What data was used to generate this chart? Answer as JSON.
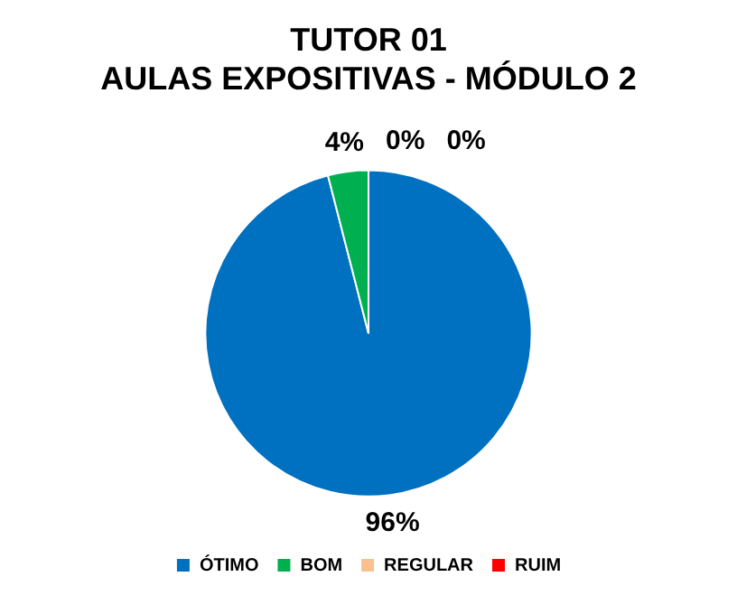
{
  "chart_data": {
    "type": "pie",
    "title": "TUTOR 01\nAULAS EXPOSITIVAS - MÓDULO 2",
    "categories": [
      "ÓTIMO",
      "BOM",
      "REGULAR",
      "RUIM"
    ],
    "values": [
      96,
      4,
      0,
      0
    ],
    "colors": [
      "#0070c0",
      "#00b050",
      "#fac090",
      "#ff0000"
    ],
    "value_labels": [
      "96%",
      "4%",
      "0%",
      "0%"
    ],
    "legend": "bottom"
  }
}
